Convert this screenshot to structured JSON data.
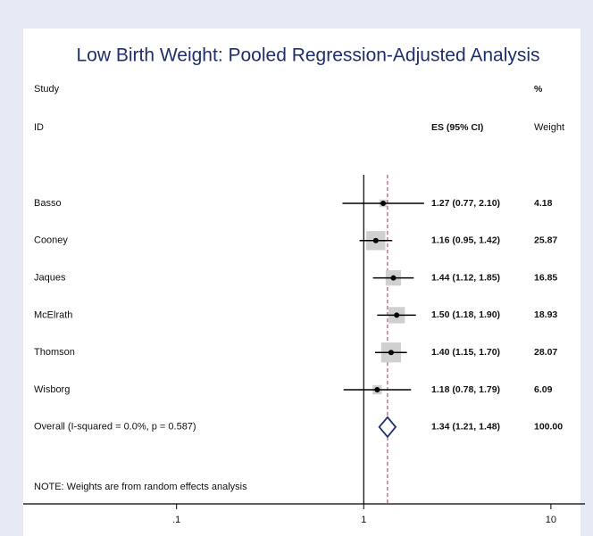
{
  "chart_data": {
    "type": "forest",
    "title": "Low Birth Weight: Pooled Regression-Adjusted Analysis",
    "headers": {
      "study": "Study",
      "id": "ID",
      "es": "ES (95% CI)",
      "pct": "%",
      "weight": "Weight"
    },
    "categories": [
      "Basso",
      "Cooney",
      "Jaques",
      "McElrath",
      "Thomson",
      "Wisborg"
    ],
    "values": [
      1.27,
      1.16,
      1.44,
      1.5,
      1.4,
      1.18
    ],
    "lower": [
      0.77,
      0.95,
      1.12,
      1.18,
      1.15,
      0.78
    ],
    "upper": [
      2.1,
      1.42,
      1.85,
      1.9,
      1.7,
      1.79
    ],
    "value_labels": [
      "1.27 (0.77, 2.10)",
      "1.16 (0.95, 1.42)",
      "1.44 (1.12, 1.85)",
      "1.50 (1.18, 1.90)",
      "1.40 (1.15, 1.70)",
      "1.18 (0.78, 1.79)"
    ],
    "weights": [
      4.18,
      25.87,
      16.85,
      18.93,
      28.07,
      6.09
    ],
    "weight_labels": [
      "4.18",
      "25.87",
      "16.85",
      "18.93",
      "28.07",
      "6.09"
    ],
    "overall": {
      "label": "Overall  (I-squared = 0.0%, p = 0.587)",
      "value": 1.34,
      "lower": 1.21,
      "upper": 1.48,
      "value_label": "1.34 (1.21, 1.48)",
      "weight": 100,
      "weight_label": "100.00"
    },
    "note": "NOTE: Weights are from random effects analysis",
    "null_line": 1,
    "xscale": "log",
    "xlim": [
      0.0155,
      15.2
    ],
    "xticks": [
      {
        "value": 0.1,
        "label": ".1"
      },
      1,
      10
    ],
    "color": "#1f2f6e",
    "box_color": "#d0d0d0",
    "overall_line_color": "#b03040"
  }
}
